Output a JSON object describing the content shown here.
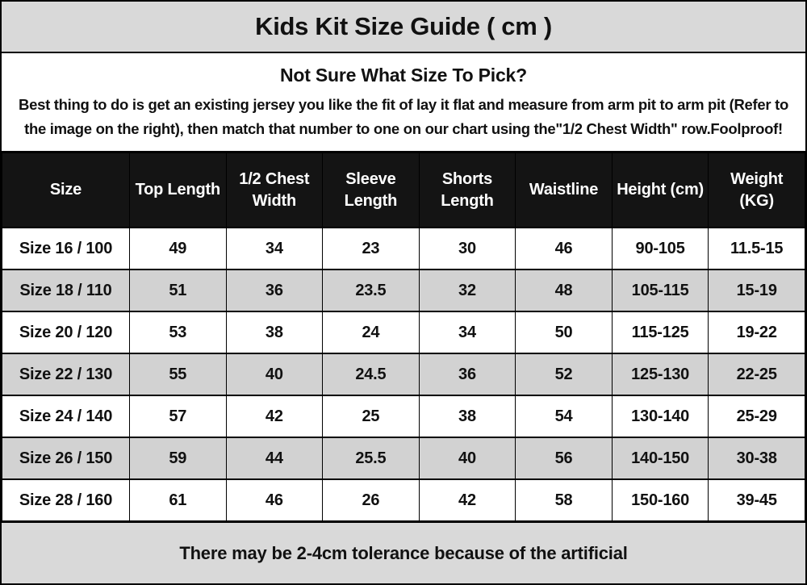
{
  "chart_data": {
    "type": "table",
    "title": "Kids Kit Size Guide ( cm )",
    "columns": [
      "Size",
      "Top Length",
      "1/2 Chest Width",
      "Sleeve Length",
      "Shorts Length",
      "Waistline",
      "Height (cm)",
      "Weight (KG)"
    ],
    "rows": [
      [
        "Size 16 / 100",
        "49",
        "34",
        "23",
        "30",
        "46",
        "90-105",
        "11.5-15"
      ],
      [
        "Size 18 / 110",
        "51",
        "36",
        "23.5",
        "32",
        "48",
        "105-115",
        "15-19"
      ],
      [
        "Size 20 / 120",
        "53",
        "38",
        "24",
        "34",
        "50",
        "115-125",
        "19-22"
      ],
      [
        "Size 22 / 130",
        "55",
        "40",
        "24.5",
        "36",
        "52",
        "125-130",
        "22-25"
      ],
      [
        "Size 24 / 140",
        "57",
        "42",
        "25",
        "38",
        "54",
        "130-140",
        "25-29"
      ],
      [
        "Size 26 / 150",
        "59",
        "44",
        "25.5",
        "40",
        "56",
        "140-150",
        "30-38"
      ],
      [
        "Size 28 / 160",
        "61",
        "46",
        "26",
        "42",
        "58",
        "150-160",
        "39-45"
      ]
    ],
    "notes": "There may be 2-4cm tolerance because of the artificial",
    "layout_hints": {
      "header_style": "black-band-white-text",
      "row_striping": "white-and-gray-alternating",
      "grid": "on"
    }
  },
  "info": {
    "heading": "Not Sure What Size To Pick?",
    "body": "Best thing to do is get an existing jersey you like the fit of lay it flat and measure from arm pit to arm pit (Refer to the image on the right), then match that number to one on our chart using the\"1/2 Chest Width\" row.Foolproof!"
  },
  "colors": {
    "band_bg": "#d9d9d9",
    "table_header_bg": "#141414",
    "row_alt_bg": "#d2d2d2",
    "border": "#000000"
  }
}
